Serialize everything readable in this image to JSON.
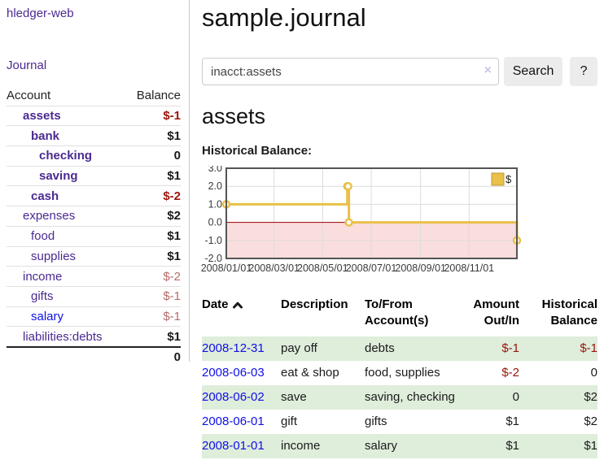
{
  "app": {
    "brand": "hledger-web",
    "nav_journal": "Journal"
  },
  "sidebar": {
    "table": {
      "headers": {
        "account": "Account",
        "balance": "Balance"
      },
      "rows": [
        {
          "account": "assets",
          "balance": "$-1",
          "indent": 1,
          "bold": true,
          "link_style": "purple",
          "balance_style": "neg"
        },
        {
          "account": "bank",
          "balance": "$1",
          "indent": 2,
          "bold": true,
          "link_style": "purple",
          "balance_style": "pos"
        },
        {
          "account": "checking",
          "balance": "0",
          "indent": 3,
          "bold": true,
          "link_style": "purple",
          "balance_style": "pos"
        },
        {
          "account": "saving",
          "balance": "$1",
          "indent": 3,
          "bold": true,
          "link_style": "purple",
          "balance_style": "pos"
        },
        {
          "account": "cash",
          "balance": "$-2",
          "indent": 2,
          "bold": true,
          "link_style": "purple",
          "balance_style": "neg"
        },
        {
          "account": "expenses",
          "balance": "$2",
          "indent": 1,
          "bold": false,
          "link_style": "purple",
          "balance_style": "pos"
        },
        {
          "account": "food",
          "balance": "$1",
          "indent": 2,
          "bold": false,
          "link_style": "purple",
          "balance_style": "pos"
        },
        {
          "account": "supplies",
          "balance": "$1",
          "indent": 2,
          "bold": false,
          "link_style": "purple",
          "balance_style": "pos"
        },
        {
          "account": "income",
          "balance": "$-2",
          "indent": 1,
          "bold": false,
          "link_style": "purple",
          "balance_style": "negmuted"
        },
        {
          "account": "gifts",
          "balance": "$-1",
          "indent": 2,
          "bold": false,
          "link_style": "purple",
          "balance_style": "negmuted"
        },
        {
          "account": "salary",
          "balance": "$-1",
          "indent": 2,
          "bold": false,
          "link_style": "blue",
          "balance_style": "negmuted"
        },
        {
          "account": "liabilities:debts",
          "balance": "$1",
          "indent": 1,
          "bold": false,
          "link_style": "purple",
          "balance_style": "pos"
        }
      ],
      "total": "0"
    }
  },
  "main": {
    "title": "sample.journal",
    "search": {
      "value": "inacct:assets",
      "clear_icon": "×",
      "button_label": "Search",
      "help_label": "?"
    },
    "section_title": "assets",
    "chart_label": "Historical Balance:"
  },
  "chart_data": {
    "type": "line",
    "title": "Historical Balance:",
    "series": [
      {
        "name": "$",
        "color": "#e9c049",
        "step": true,
        "points": [
          [
            "2008/01/01",
            1
          ],
          [
            "2008/06/01",
            2
          ],
          [
            "2008/06/02",
            2
          ],
          [
            "2008/06/03",
            0
          ],
          [
            "2008/12/31",
            -1
          ]
        ]
      }
    ],
    "ylim": [
      -2,
      3
    ],
    "yticks": [
      3.0,
      2.0,
      1.0,
      0.0,
      -1.0,
      -2.0
    ],
    "xticks": [
      "2008/01/01",
      "2008/03/01",
      "2008/05/01",
      "2008/07/01",
      "2008/09/01",
      "2008/11/01"
    ],
    "xrange": [
      "2008/01/01",
      "2008/12/31"
    ],
    "grid": true,
    "legend_position": "top-right",
    "negative_region_color": "#fadddd",
    "zero_line_color": "#990000",
    "grid_color": "#dcdcdc",
    "border_color": "#545454",
    "legend_fill": "#e8c04a",
    "legend_border": "#c09a35"
  },
  "register": {
    "headers": {
      "date": "Date",
      "description": "Description",
      "accounts": "To/From Account(s)",
      "amount": "Amount Out/In",
      "balance": "Historical Balance"
    },
    "sort_icon": "chevron-up",
    "rows": [
      {
        "date": "2008-12-31",
        "description": "pay off",
        "accounts": "debts",
        "amount": "$-1",
        "amount_neg": true,
        "balance": "$-1",
        "balance_neg": true
      },
      {
        "date": "2008-06-03",
        "description": "eat & shop",
        "accounts": "food, supplies",
        "amount": "$-2",
        "amount_neg": true,
        "balance": "0",
        "balance_neg": false
      },
      {
        "date": "2008-06-02",
        "description": "save",
        "accounts": "saving, checking",
        "amount": "0",
        "amount_neg": false,
        "balance": "$2",
        "balance_neg": false
      },
      {
        "date": "2008-06-01",
        "description": "gift",
        "accounts": "gifts",
        "amount": "$1",
        "amount_neg": false,
        "balance": "$2",
        "balance_neg": false
      },
      {
        "date": "2008-01-01",
        "description": "income",
        "accounts": "salary",
        "amount": "$1",
        "amount_neg": false,
        "balance": "$1",
        "balance_neg": false
      }
    ]
  },
  "colors": {
    "link_purple": "#4b2a91",
    "link_blue": "#0f0fe8",
    "negative_strong": "#9c1309",
    "negative_muted": "#b56a66",
    "row_green": "#dfeddb",
    "series_gold": "#e9c049"
  }
}
